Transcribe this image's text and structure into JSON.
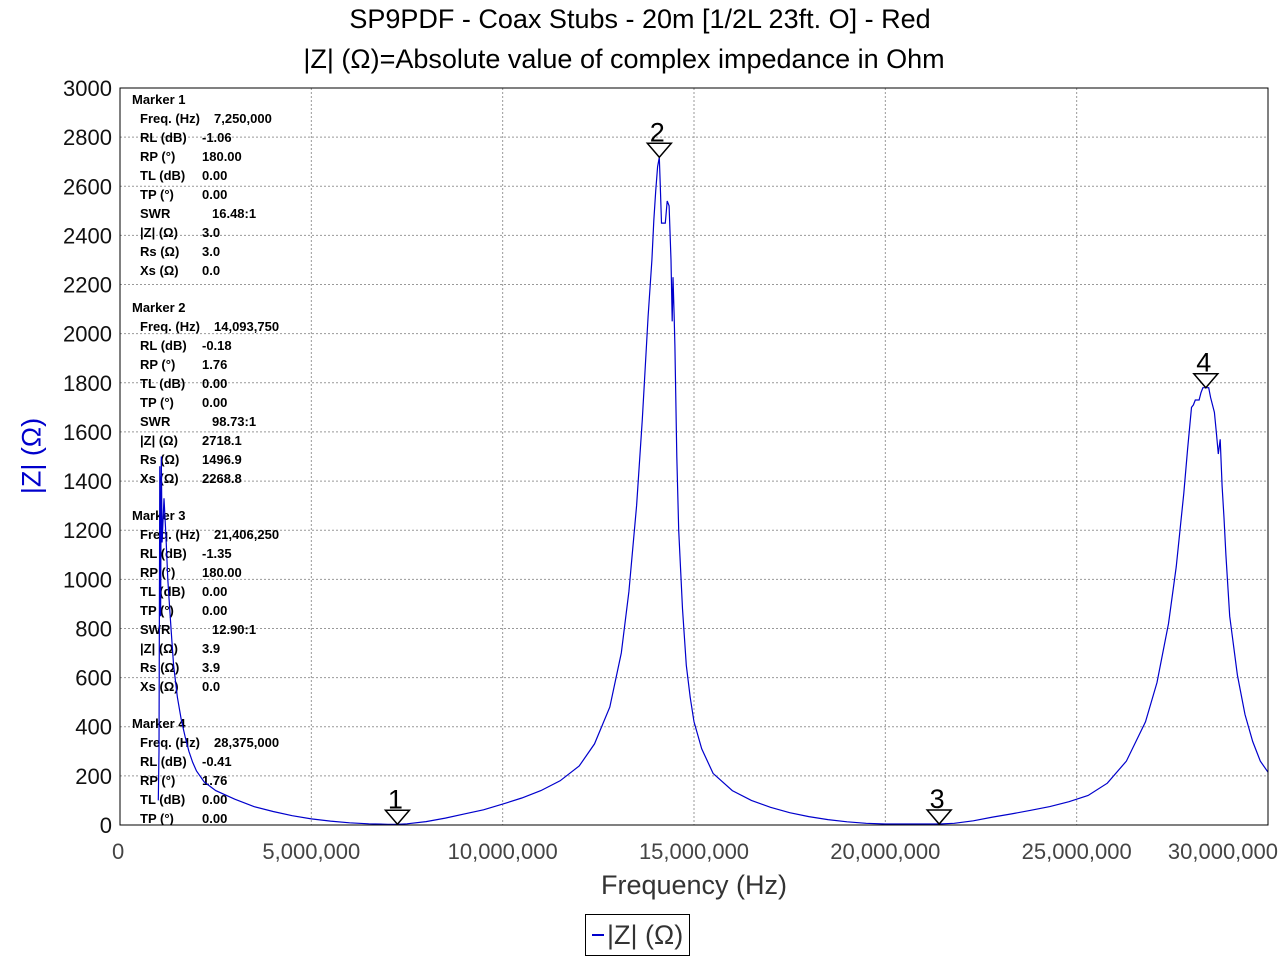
{
  "chart_data": {
    "type": "line",
    "title": "SP9PDF - Coax Stubs - 20m [1/2L 23ft. O] - Red",
    "subtitle": "|Z| (Ω)=Absolute value of complex impedance in Ohm",
    "xlabel": "Frequency (Hz)",
    "ylabel": "|Z| (Ω)",
    "xlim": [
      0,
      30000000
    ],
    "ylim": [
      0,
      3000
    ],
    "x_ticks": [
      "0",
      "5,000,000",
      "10,000,000",
      "15,000,000",
      "20,000,000",
      "25,000,000",
      "30,000,000"
    ],
    "y_ticks": [
      "0",
      "200",
      "400",
      "600",
      "800",
      "1000",
      "1200",
      "1400",
      "1600",
      "1800",
      "2000",
      "2200",
      "2400",
      "2600",
      "2800",
      "3000"
    ],
    "grid": true,
    "legend": "bottom-center",
    "line_color": "#0000cc",
    "series": [
      {
        "name": "|Z| (Ω)",
        "x": [
          1000000,
          1020000,
          1040000,
          1060000,
          1080000,
          1100000,
          1150000,
          1200000,
          1250000,
          1300000,
          1350000,
          1400000,
          1500000,
          1600000,
          1700000,
          1800000,
          1900000,
          2000000,
          2200000,
          2500000,
          3000000,
          3500000,
          4000000,
          4500000,
          5000000,
          5500000,
          6000000,
          6500000,
          7000000,
          7250000,
          7500000,
          8000000,
          8500000,
          9000000,
          9500000,
          10000000,
          10500000,
          11000000,
          11500000,
          12000000,
          12400000,
          12800000,
          13100000,
          13300000,
          13500000,
          13650000,
          13800000,
          13900000,
          13950000,
          14000000,
          14050000,
          14093750,
          14120000,
          14150000,
          14200000,
          14250000,
          14300000,
          14350000,
          14400000,
          14430000,
          14450000,
          14480000,
          14500000,
          14550000,
          14600000,
          14700000,
          14800000,
          14900000,
          15000000,
          15200000,
          15500000,
          16000000,
          16500000,
          17000000,
          17500000,
          18000000,
          18500000,
          19000000,
          19500000,
          20000000,
          20500000,
          21000000,
          21406250,
          21800000,
          22300000,
          22800000,
          23300000,
          23800000,
          24300000,
          24800000,
          25300000,
          25800000,
          26300000,
          26800000,
          27100000,
          27400000,
          27600000,
          27800000,
          27900000,
          28000000,
          28050000,
          28100000,
          28200000,
          28250000,
          28300000,
          28375000,
          28450000,
          28500000,
          28600000,
          28650000,
          28700000,
          28750000,
          28800000,
          28850000,
          28900000,
          29000000,
          29200000,
          29400000,
          29600000,
          29800000,
          30000000
        ],
        "values": [
          100,
          300,
          1460,
          850,
          1500,
          1150,
          1330,
          1180,
          1000,
          880,
          760,
          650,
          520,
          430,
          360,
          300,
          255,
          220,
          175,
          140,
          105,
          75,
          55,
          38,
          25,
          16,
          9,
          5,
          3,
          3,
          5,
          14,
          28,
          45,
          62,
          85,
          110,
          140,
          180,
          240,
          330,
          480,
          700,
          950,
          1300,
          1650,
          2070,
          2300,
          2460,
          2580,
          2680,
          2718,
          2600,
          2450,
          2450,
          2450,
          2540,
          2520,
          2300,
          2050,
          2230,
          2080,
          1950,
          1500,
          1200,
          880,
          650,
          520,
          420,
          310,
          210,
          140,
          100,
          72,
          50,
          34,
          22,
          13,
          7,
          4,
          4,
          4,
          4,
          7,
          17,
          32,
          45,
          60,
          75,
          95,
          120,
          170,
          260,
          420,
          580,
          820,
          1050,
          1350,
          1530,
          1700,
          1710,
          1730,
          1730,
          1760,
          1780,
          1780,
          1780,
          1740,
          1680,
          1600,
          1510,
          1570,
          1380,
          1250,
          1100,
          850,
          610,
          450,
          340,
          260,
          215
        ]
      }
    ],
    "markers": [
      {
        "label": "1",
        "x": 7250000,
        "y": 3
      },
      {
        "label": "2",
        "x": 14093750,
        "y": 2718.1
      },
      {
        "label": "3",
        "x": 21406250,
        "y": 3.9
      },
      {
        "label": "4",
        "x": 28375000,
        "y": 1780
      }
    ],
    "annotations": [
      {
        "title": "Marker 1",
        "rows": [
          [
            "Freq. (Hz)",
            "7,250,000"
          ],
          [
            "RL (dB)",
            "-1.06"
          ],
          [
            "RP (°)",
            "180.00"
          ],
          [
            "TL (dB)",
            "0.00"
          ],
          [
            "TP (°)",
            "0.00"
          ],
          [
            "SWR",
            "16.48:1"
          ],
          [
            "|Z| (Ω)",
            "3.0"
          ],
          [
            "Rs (Ω)",
            "3.0"
          ],
          [
            "Xs (Ω)",
            "0.0"
          ]
        ]
      },
      {
        "title": "Marker 2",
        "rows": [
          [
            "Freq. (Hz)",
            "14,093,750"
          ],
          [
            "RL (dB)",
            "-0.18"
          ],
          [
            "RP (°)",
            "1.76"
          ],
          [
            "TL (dB)",
            "0.00"
          ],
          [
            "TP (°)",
            "0.00"
          ],
          [
            "SWR",
            "98.73:1"
          ],
          [
            "|Z| (Ω)",
            "2718.1"
          ],
          [
            "Rs (Ω)",
            "1496.9"
          ],
          [
            "Xs (Ω)",
            "2268.8"
          ]
        ]
      },
      {
        "title": "Marker 3",
        "rows": [
          [
            "Freq. (Hz)",
            "21,406,250"
          ],
          [
            "RL (dB)",
            "-1.35"
          ],
          [
            "RP (°)",
            "180.00"
          ],
          [
            "TL (dB)",
            "0.00"
          ],
          [
            "TP (°)",
            "0.00"
          ],
          [
            "SWR",
            "12.90:1"
          ],
          [
            "|Z| (Ω)",
            "3.9"
          ],
          [
            "Rs (Ω)",
            "3.9"
          ],
          [
            "Xs (Ω)",
            "0.0"
          ]
        ]
      },
      {
        "title": "Marker 4",
        "rows": [
          [
            "Freq. (Hz)",
            "28,375,000"
          ],
          [
            "RL (dB)",
            "-0.41"
          ],
          [
            "RP (°)",
            "1.76"
          ],
          [
            "TL (dB)",
            "0.00"
          ],
          [
            "TP (°)",
            "0.00"
          ]
        ]
      }
    ]
  }
}
